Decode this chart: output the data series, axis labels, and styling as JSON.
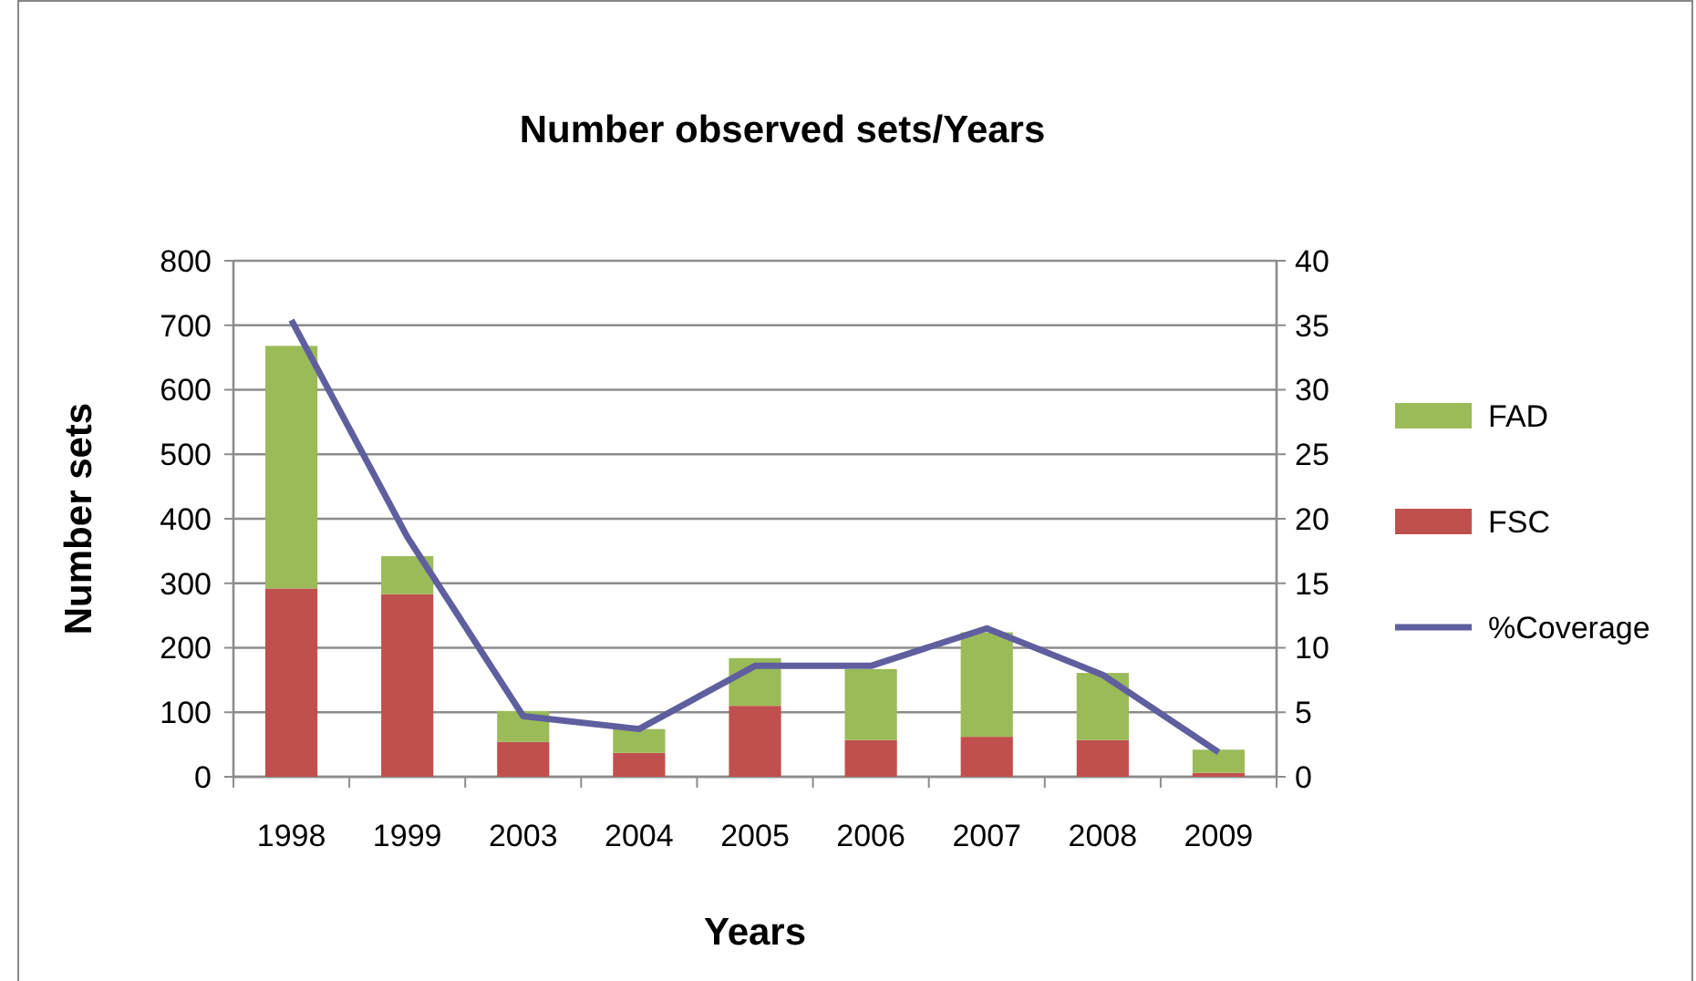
{
  "chart_data": {
    "type": "bar",
    "title": "Number observed sets/Years",
    "xlabel": "Years",
    "ylabel": "Number sets",
    "categories": [
      "1998",
      "1999",
      "2003",
      "2004",
      "2005",
      "2006",
      "2007",
      "2008",
      "2009"
    ],
    "stacked": true,
    "series": [
      {
        "name": "FSC",
        "color": "#c0504d",
        "values": [
          292,
          283,
          54,
          37,
          110,
          57,
          62,
          57,
          6
        ]
      },
      {
        "name": "FAD",
        "color": "#9bbb59",
        "values": [
          376,
          59,
          48,
          37,
          74,
          110,
          162,
          104,
          36
        ]
      },
      {
        "name": "%Coverage",
        "type": "line",
        "axis": "y2",
        "color": "#5f5f9f",
        "values": [
          35.4,
          18.6,
          4.7,
          3.7,
          8.6,
          8.6,
          11.5,
          7.9,
          1.9
        ]
      }
    ],
    "ylim": [
      0,
      800
    ],
    "yticks": [
      0,
      100,
      200,
      300,
      400,
      500,
      600,
      700,
      800
    ],
    "y2lim": [
      0,
      40
    ],
    "y2ticks": [
      0,
      5,
      10,
      15,
      20,
      25,
      30,
      35,
      40
    ],
    "grid": "y",
    "legend": "right",
    "marker": "none"
  }
}
